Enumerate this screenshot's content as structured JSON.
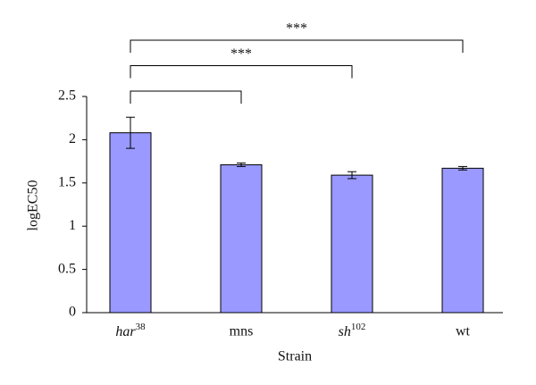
{
  "chart_data": {
    "type": "bar",
    "x_label": "Strain",
    "y_label": "logEC50",
    "categories": [
      [
        "har",
        "38"
      ],
      "mns",
      [
        "sh",
        "102"
      ],
      "wt"
    ],
    "values": [
      2.08,
      1.71,
      1.59,
      1.67
    ],
    "errors": [
      0.18,
      0.02,
      0.04,
      0.02
    ],
    "color": "#9999ff",
    "ylim": [
      0,
      2.5
    ],
    "yticks": [
      0,
      0.5,
      1,
      {
        "value": 1.5,
        "label": "1.5"
      },
      2,
      2.5
    ],
    "brackets": [
      {
        "from": 0,
        "to": 1
      },
      {
        "from": 0,
        "to": 2,
        "label": "***"
      },
      {
        "from": 0,
        "to": 3,
        "label": "***"
      }
    ]
  }
}
